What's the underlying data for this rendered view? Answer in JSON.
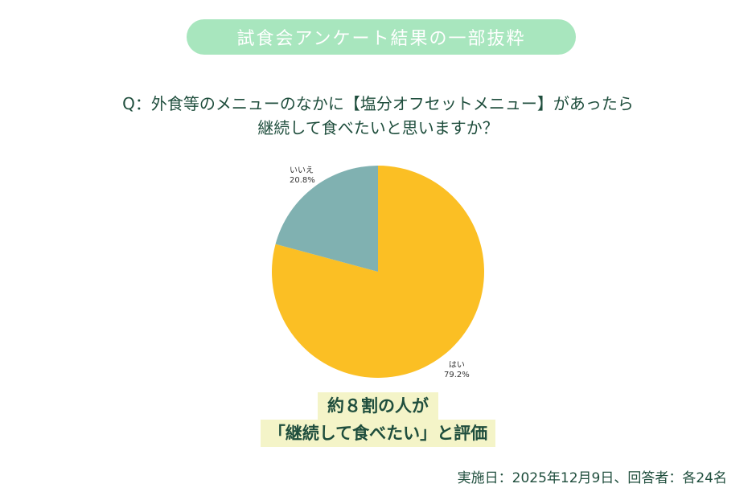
{
  "header": {
    "title": "試食会アンケート結果の一部抜粋"
  },
  "question": {
    "line1": "Q：外食等のメニューのなかに【塩分オフセットメニュー】があったら",
    "line2": "継続して食べたいと思いますか？"
  },
  "chart_data": {
    "type": "pie",
    "title": "外食等のメニューのなかに【塩分オフセットメニュー】があったら継続して食べたいと思いますか？",
    "categories": [
      "はい",
      "いいえ"
    ],
    "values": [
      79.2,
      20.8
    ],
    "unit": "%",
    "colors": [
      "#fbbf24",
      "#80b1b1"
    ],
    "start_angle": "12 o'clock",
    "labels": [
      {
        "name": "はい",
        "value_label": "79.2%"
      },
      {
        "name": "いいえ",
        "value_label": "20.8%"
      }
    ],
    "legend": "none"
  },
  "labels": {
    "no_name": "いいえ",
    "no_pct": "20.8%",
    "yes_name": "はい",
    "yes_pct": "79.2%"
  },
  "callout": {
    "line1": "約８割の人が",
    "line2": "「継続して食べたい」と評価"
  },
  "footer": {
    "text": "実施日：2025年12月9日、回答者：各24名"
  },
  "colors": {
    "title_bg": "#a8e6be",
    "text": "#1f4e3d",
    "yes": "#fbbf24",
    "no": "#80b1b1",
    "callout_bg": "#f4f4c8"
  }
}
